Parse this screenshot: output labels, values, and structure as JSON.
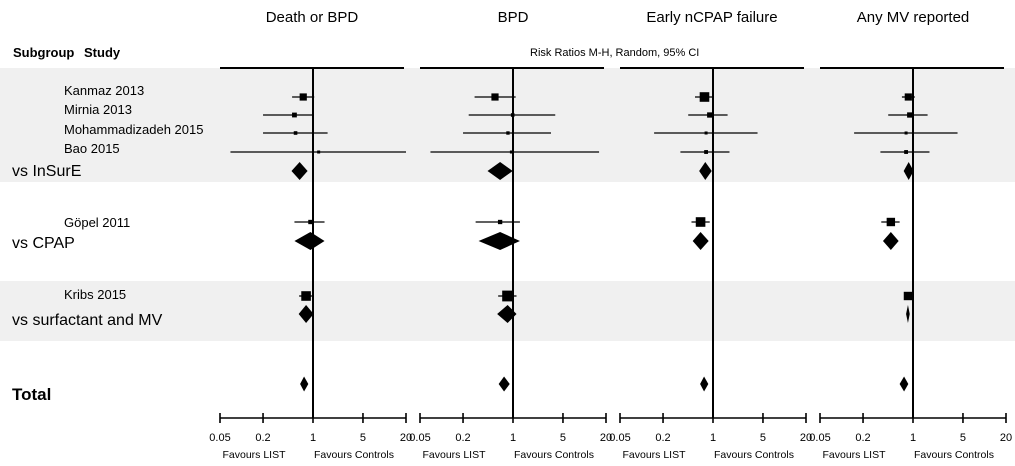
{
  "chart_data": {
    "type": "forest",
    "method_label": "Risk Ratios   M-H, Random, 95% CI",
    "column_headers": {
      "subgroup": "Subgroup",
      "study": "Study"
    },
    "panels": [
      "Death or BPD",
      "BPD",
      "Early nCPAP failure",
      "Any MV reported"
    ],
    "x_scale": "log",
    "xlim": [
      0.05,
      20
    ],
    "ticks": [
      {
        "value": 0.05,
        "label": "0.05"
      },
      {
        "value": 0.2,
        "label": "0.2"
      },
      {
        "value": 1,
        "label": "1"
      },
      {
        "value": 5,
        "label": "5"
      },
      {
        "value": 20,
        "label": "20"
      }
    ],
    "favours_left": "Favours LIST",
    "favours_right": "Favours Controls",
    "rows": [
      {
        "label": "Kanmaz 2013",
        "kind": "study",
        "effects": [
          {
            "rr": 0.73,
            "lo": 0.51,
            "hi": 1.04,
            "w": 3
          },
          {
            "rr": 0.56,
            "lo": 0.29,
            "hi": 1.09,
            "w": 3
          },
          {
            "rr": 0.76,
            "lo": 0.56,
            "hi": 1.02,
            "w": 4
          },
          {
            "rr": 0.86,
            "lo": 0.7,
            "hi": 1.06,
            "w": 3
          }
        ]
      },
      {
        "label": "Mirnia 2013",
        "kind": "study",
        "effects": [
          {
            "rr": 0.55,
            "lo": 0.2,
            "hi": 1.0,
            "w": 2
          },
          {
            "rr": 0.99,
            "lo": 0.24,
            "hi": 3.9,
            "w": 1.5
          },
          {
            "rr": 0.9,
            "lo": 0.45,
            "hi": 1.6,
            "w": 2.2
          },
          {
            "rr": 0.9,
            "lo": 0.45,
            "hi": 1.6,
            "w": 2.2
          }
        ]
      },
      {
        "label": "Mohammadizadeh 2015",
        "kind": "study",
        "effects": [
          {
            "rr": 0.57,
            "lo": 0.2,
            "hi": 1.6,
            "w": 1.5
          },
          {
            "rr": 0.85,
            "lo": 0.2,
            "hi": 3.4,
            "w": 1.4
          },
          {
            "rr": 0.8,
            "lo": 0.15,
            "hi": 4.2,
            "w": 1.2
          },
          {
            "rr": 0.8,
            "lo": 0.15,
            "hi": 4.2,
            "w": 1.2
          }
        ]
      },
      {
        "label": "Bao 2015",
        "kind": "study",
        "effects": [
          {
            "rr": 1.2,
            "lo": 0.07,
            "hi": 20,
            "w": 1
          },
          {
            "rr": 0.95,
            "lo": 0.07,
            "hi": 16,
            "w": 1
          },
          {
            "rr": 0.8,
            "lo": 0.35,
            "hi": 1.7,
            "w": 1.6
          },
          {
            "rr": 0.8,
            "lo": 0.35,
            "hi": 1.7,
            "w": 1.6
          }
        ]
      },
      {
        "label": "vs InSurE",
        "kind": "subtotal",
        "effects": [
          {
            "rr": 0.65,
            "lo": 0.5,
            "hi": 0.84
          },
          {
            "rr": 0.66,
            "lo": 0.44,
            "hi": 0.99
          },
          {
            "rr": 0.78,
            "lo": 0.64,
            "hi": 0.96
          },
          {
            "rr": 0.87,
            "lo": 0.74,
            "hi": 1.02
          }
        ]
      },
      {
        "label": "Göpel 2011",
        "kind": "study",
        "effects": [
          {
            "rr": 0.92,
            "lo": 0.55,
            "hi": 1.45,
            "w": 1.8
          },
          {
            "rr": 0.66,
            "lo": 0.3,
            "hi": 1.25,
            "w": 1.8
          },
          {
            "rr": 0.67,
            "lo": 0.5,
            "hi": 0.9,
            "w": 4
          },
          {
            "rr": 0.49,
            "lo": 0.36,
            "hi": 0.65,
            "w": 3.5
          }
        ]
      },
      {
        "label": "vs CPAP",
        "kind": "subtotal",
        "effects": [
          {
            "rr": 0.92,
            "lo": 0.55,
            "hi": 1.45
          },
          {
            "rr": 0.66,
            "lo": 0.33,
            "hi": 1.25
          },
          {
            "rr": 0.67,
            "lo": 0.52,
            "hi": 0.87
          },
          {
            "rr": 0.49,
            "lo": 0.38,
            "hi": 0.63
          }
        ]
      },
      {
        "label": "Kribs 2015",
        "kind": "study",
        "effects": [
          {
            "rr": 0.8,
            "lo": 0.64,
            "hi": 1.0,
            "w": 4
          },
          {
            "rr": 0.84,
            "lo": 0.62,
            "hi": 1.12,
            "w": 4.5
          },
          null,
          {
            "rr": 0.85,
            "lo": 0.82,
            "hi": 0.88,
            "w": 3.5
          }
        ]
      },
      {
        "label": "vs surfactant and MV",
        "kind": "subtotal",
        "effects": [
          {
            "rr": 0.8,
            "lo": 0.63,
            "hi": 1.02
          },
          {
            "rr": 0.84,
            "lo": 0.6,
            "hi": 1.12
          },
          null,
          {
            "rr": 0.85,
            "lo": 0.8,
            "hi": 0.9
          }
        ]
      },
      {
        "label": "Total",
        "kind": "total",
        "effects": [
          {
            "rr": 0.75,
            "lo": 0.66,
            "hi": 0.86
          },
          {
            "rr": 0.75,
            "lo": 0.63,
            "hi": 0.9
          },
          {
            "rr": 0.75,
            "lo": 0.66,
            "hi": 0.86
          },
          {
            "rr": 0.75,
            "lo": 0.65,
            "hi": 0.86
          }
        ]
      }
    ],
    "band_colors": [
      "#f0f0f0",
      "#ffffff"
    ]
  }
}
